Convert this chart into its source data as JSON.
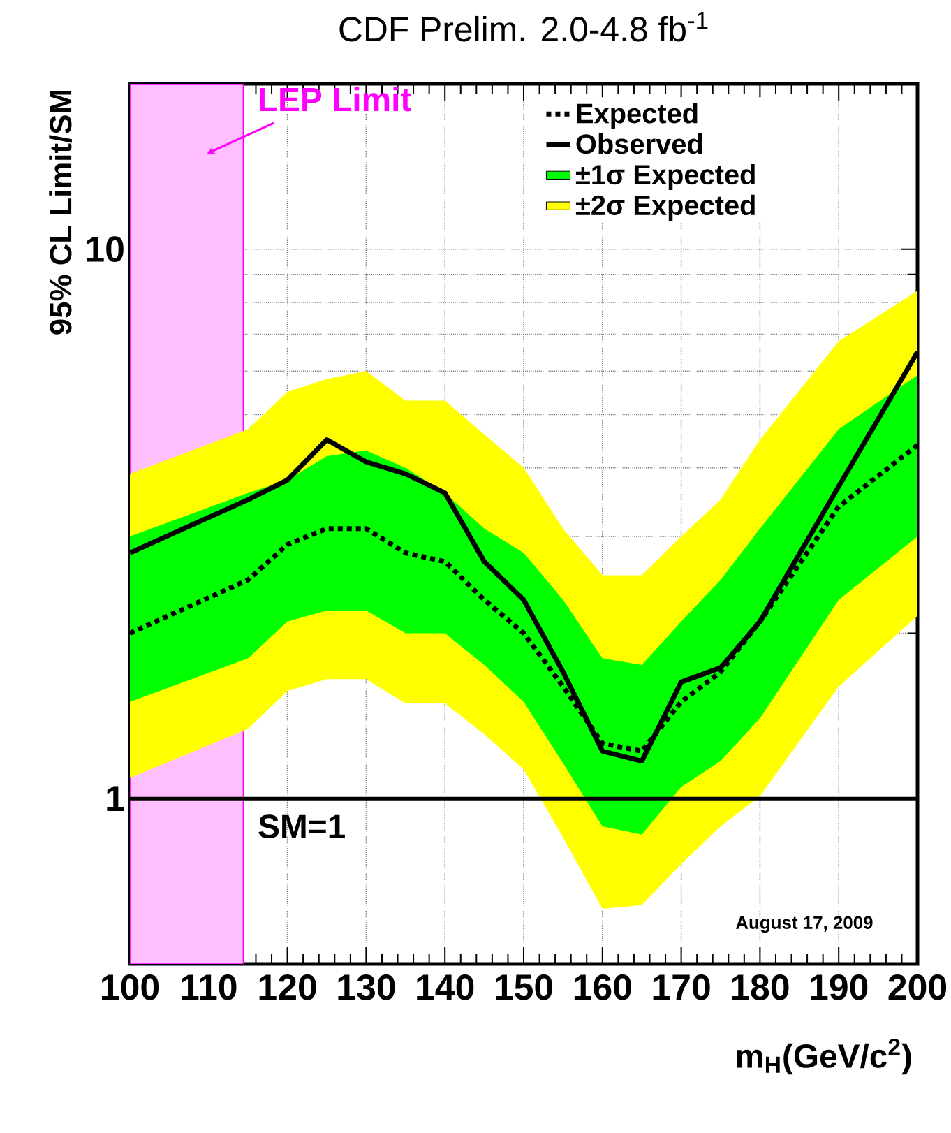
{
  "chart_data": {
    "type": "line",
    "title": "CDF Prelim. 2.0-4.8 fb$^{-1}$",
    "xlabel": "m$_{H}$(GeV/c$^{2}$)",
    "ylabel": "95% CL Limit/SM",
    "x": [
      100,
      115,
      120,
      125,
      130,
      135,
      140,
      145,
      150,
      155,
      160,
      165,
      170,
      175,
      180,
      190,
      200
    ],
    "series": [
      {
        "name": "Expected",
        "line_style": "dotted",
        "color": "#000000",
        "values": [
          2.0,
          2.5,
          2.9,
          3.1,
          3.1,
          2.8,
          2.7,
          2.3,
          2.0,
          1.6,
          1.26,
          1.22,
          1.5,
          1.7,
          2.1,
          3.4,
          4.4
        ]
      },
      {
        "name": "Observed",
        "line_style": "solid",
        "color": "#000000",
        "values": [
          2.8,
          3.5,
          3.8,
          4.5,
          4.1,
          3.9,
          3.6,
          2.7,
          2.3,
          1.7,
          1.22,
          1.17,
          1.63,
          1.73,
          2.1,
          3.7,
          6.5
        ]
      },
      {
        "name": "±1σ Expected",
        "color": "#00ff00",
        "values": [
          null,
          null,
          null,
          null,
          null,
          null,
          null,
          null,
          null,
          null,
          null,
          null,
          null,
          null,
          null,
          null,
          null
        ],
        "upper": [
          3.0,
          3.6,
          3.8,
          4.2,
          4.3,
          4.0,
          3.6,
          3.1,
          2.8,
          2.3,
          1.8,
          1.75,
          2.1,
          2.5,
          3.1,
          4.7,
          5.9
        ],
        "lower": [
          1.5,
          1.8,
          2.1,
          2.2,
          2.2,
          2.0,
          2.0,
          1.75,
          1.5,
          1.16,
          0.89,
          0.86,
          1.05,
          1.17,
          1.4,
          2.3,
          3.0
        ]
      },
      {
        "name": "±2σ Expected",
        "color": "#ffff00",
        "values": [
          null,
          null,
          null,
          null,
          null,
          null,
          null,
          null,
          null,
          null,
          null,
          null,
          null,
          null,
          null,
          null,
          null
        ],
        "upper": [
          3.9,
          4.7,
          5.5,
          5.8,
          6.0,
          5.3,
          5.3,
          4.6,
          4.0,
          3.1,
          2.55,
          2.55,
          3.0,
          3.5,
          4.5,
          6.8,
          8.4
        ],
        "lower": [
          1.09,
          1.34,
          1.57,
          1.65,
          1.65,
          1.49,
          1.49,
          1.31,
          1.13,
          0.85,
          0.63,
          0.64,
          0.76,
          0.89,
          1.01,
          1.6,
          2.15
        ]
      }
    ],
    "xlim": [
      100,
      200
    ],
    "xticks": [
      100,
      110,
      120,
      130,
      140,
      150,
      160,
      170,
      180,
      190,
      200
    ],
    "ylim": [
      0.5,
      20
    ],
    "yticks": [
      1,
      10
    ],
    "log": "y",
    "grid": true,
    "legend": "top right",
    "ref_lines": [
      {
        "axis": "y",
        "value": 1,
        "label": "SM=1",
        "color": "#000000"
      }
    ],
    "bands": [
      {
        "axis": "x",
        "from": 100,
        "to": 114.4,
        "label": "LEP Limit",
        "color": "#ff00ff"
      }
    ],
    "annotations": [
      "August 17, 2009"
    ]
  }
}
